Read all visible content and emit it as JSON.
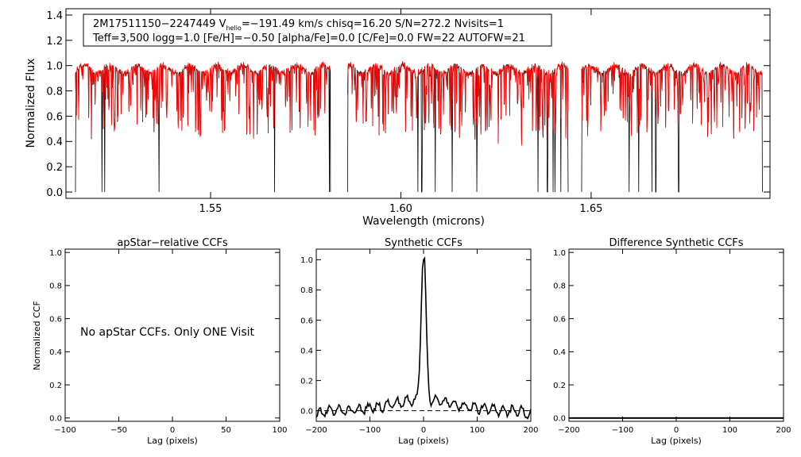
{
  "colors": {
    "observed": "#000000",
    "model": "#ff0000",
    "axes": "#000000",
    "zero_line": "#000000"
  },
  "chart_data": [
    {
      "id": "spectrum",
      "type": "line",
      "title": "",
      "xlabel": "Wavelength (microns)",
      "ylabel": "Normalized Flux",
      "xlim": [
        1.512,
        1.697
      ],
      "ylim": [
        -0.05,
        1.45
      ],
      "xticks": [
        1.55,
        1.6,
        1.65
      ],
      "xtick_labels": [
        "1.55",
        "1.60",
        "1.65"
      ],
      "yticks": [
        0.0,
        0.2,
        0.4,
        0.6,
        0.8,
        1.0,
        1.2,
        1.4
      ],
      "ytick_labels": [
        "0.0",
        "0.2",
        "0.4",
        "0.6",
        "0.8",
        "1.0",
        "1.2",
        "1.4"
      ],
      "chips": [
        [
          1.5145,
          1.5815
        ],
        [
          1.586,
          1.644
        ],
        [
          1.6475,
          1.695
        ]
      ],
      "drops_to_zero": [
        1.5215,
        1.5222,
        1.5365,
        1.5668,
        1.5812,
        1.6045,
        1.6055,
        1.609,
        1.6135,
        1.62,
        1.636,
        1.6385,
        1.64,
        1.6405,
        1.642,
        1.644,
        1.66,
        1.6625,
        1.666,
        1.667,
        1.673,
        1.695
      ],
      "series": [
        {
          "name": "observed spectrum",
          "color": "#000000"
        },
        {
          "name": "best-fit model",
          "color": "#ff0000"
        }
      ],
      "annotation": {
        "line1_a": "2M17511150−2247449  V",
        "line1_sub": "helio",
        "line1_b": "=−191.49 km/s  chisq=16.20  S/N=272.2  Nvisits=1",
        "line2": "Teff=3,500 logg=1.0 [Fe/H]=−0.50 [alpha/Fe]=0.0 [C/Fe]=0.0 FW=22 AUTOFW=21"
      }
    },
    {
      "id": "apstar-ccf",
      "type": "line",
      "title": "apStar−relative CCFs",
      "xlabel": "Lag (pixels)",
      "ylabel": "Normalized CCF",
      "xlim": [
        -100,
        100
      ],
      "ylim": [
        -0.02,
        1.02
      ],
      "xticks": [
        -100,
        -50,
        0,
        50,
        100
      ],
      "xtick_labels": [
        "−100",
        "−50",
        "0",
        "50",
        "100"
      ],
      "yticks": [
        0.0,
        0.2,
        0.4,
        0.6,
        0.8,
        1.0
      ],
      "ytick_labels": [
        "0.0",
        "0.2",
        "0.4",
        "0.6",
        "0.8",
        "1.0"
      ],
      "message": "No apStar CCFs.  Only ONE Visit",
      "series": []
    },
    {
      "id": "synthetic-ccf",
      "type": "line",
      "title": "Synthetic CCFs",
      "xlabel": "Lag (pixels)",
      "ylabel": "",
      "xlim": [
        -200,
        200
      ],
      "ylim": [
        -0.07,
        1.07
      ],
      "xticks": [
        -200,
        -100,
        0,
        100,
        200
      ],
      "xtick_labels": [
        "−200",
        "−100",
        "0",
        "100",
        "200"
      ],
      "yticks": [
        0.0,
        0.2,
        0.4,
        0.6,
        0.8,
        1.0
      ],
      "ytick_labels": [
        "0.0",
        "0.2",
        "0.4",
        "0.6",
        "0.8",
        "1.0"
      ],
      "zero_line": {
        "y": 0.0,
        "x": [
          -200,
          200
        ]
      },
      "peak": {
        "lag": 0,
        "value": 1.0
      },
      "series": [
        {
          "name": "synthetic CCF",
          "color": "#000000"
        }
      ]
    },
    {
      "id": "difference-ccf",
      "type": "line",
      "title": "Difference Synthetic CCFs",
      "xlabel": "Lag (pixels)",
      "ylabel": "",
      "xlim": [
        -200,
        200
      ],
      "ylim": [
        -0.02,
        1.02
      ],
      "xticks": [
        -200,
        -100,
        0,
        100,
        200
      ],
      "xtick_labels": [
        "−200",
        "−100",
        "0",
        "100",
        "200"
      ],
      "yticks": [
        0.0,
        0.2,
        0.4,
        0.6,
        0.8,
        1.0
      ],
      "ytick_labels": [
        "0.0",
        "0.2",
        "0.4",
        "0.6",
        "0.8",
        "1.0"
      ],
      "series": [
        {
          "name": "difference CCF",
          "values_flat_at": 0.0,
          "color": "#000000"
        }
      ]
    }
  ]
}
